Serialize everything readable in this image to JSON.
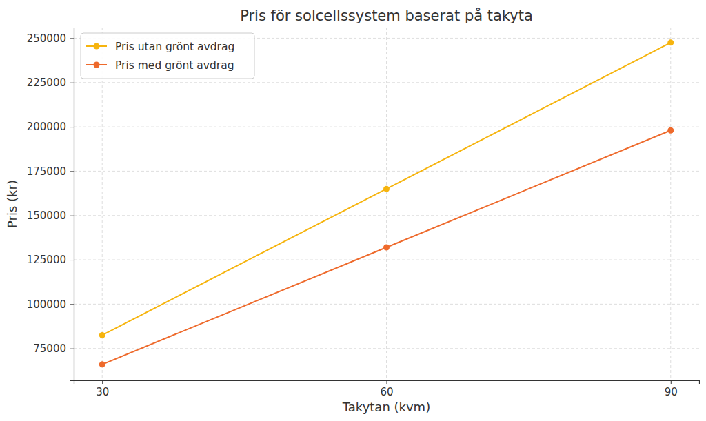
{
  "chart_data": {
    "type": "line",
    "title": "Pris för solcellssystem baserat på takyta",
    "xlabel": "Takytan (kvm)",
    "ylabel": "Pris (kr)",
    "x": [
      30,
      60,
      90
    ],
    "series": [
      {
        "name": "Pris utan grönt avdrag",
        "color": "#f6b40e",
        "values": [
          82500,
          165000,
          247500
        ]
      },
      {
        "name": "Pris med grönt avdrag",
        "color": "#ee6a2c",
        "values": [
          66000,
          132000,
          198000
        ]
      }
    ],
    "xlim": [
      27,
      93
    ],
    "ylim": [
      57000,
      256000
    ],
    "xticks": [
      30,
      60,
      90
    ],
    "yticks": [
      75000,
      100000,
      125000,
      150000,
      175000,
      200000,
      225000,
      250000
    ],
    "grid": true,
    "legend": "upper left",
    "marker": "circle"
  }
}
